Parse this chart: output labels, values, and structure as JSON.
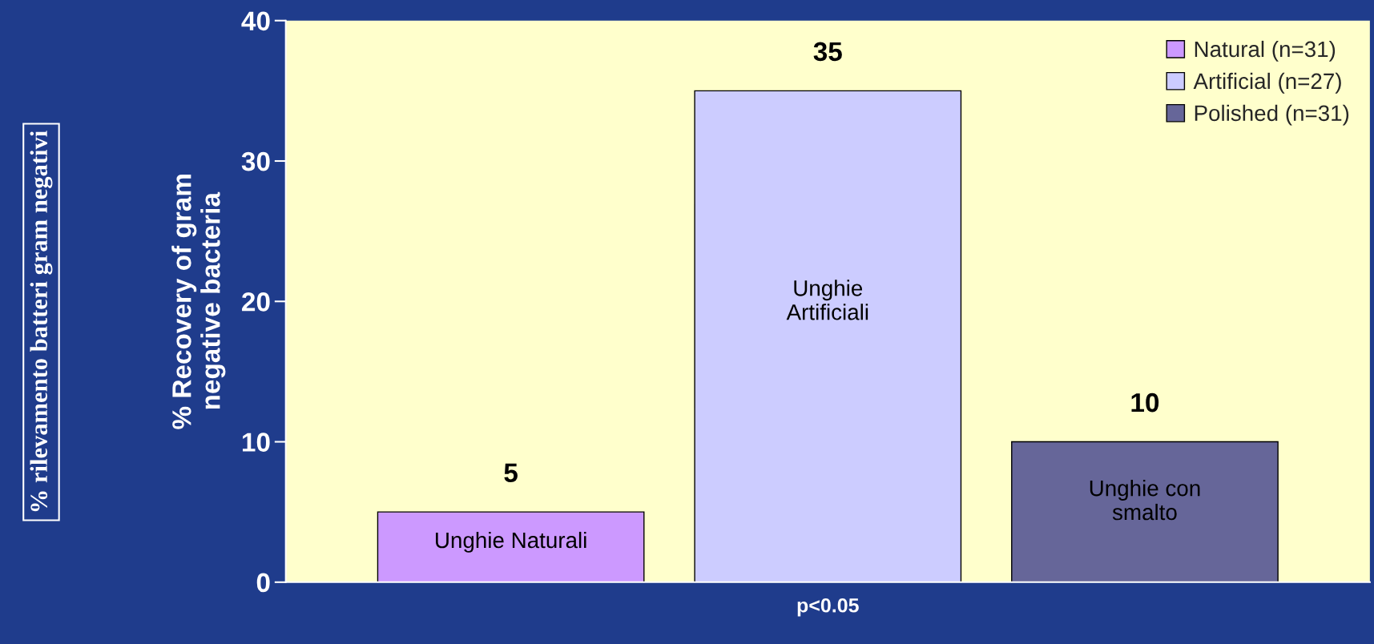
{
  "chart_data": {
    "type": "bar",
    "categories": [
      null
    ],
    "series": [
      {
        "name": "Natural (n=31)",
        "color": "#cc99ff",
        "values": [
          5
        ]
      },
      {
        "name": "Artificial (n=27)",
        "color": "#ccccff",
        "values": [
          35
        ]
      },
      {
        "name": "Polished (n=31)",
        "color": "#666699",
        "values": [
          10
        ]
      }
    ],
    "ylabel": "% Recovery of gram\nnegative bacteria",
    "xlabel": "p<0.05",
    "ylim": [
      0,
      40
    ],
    "yticks": [
      0,
      10,
      20,
      30,
      40
    ],
    "data_labels": true,
    "legend": "top right",
    "grid": false,
    "annotations": [
      "Unghie Naturali",
      "Unghie\nArtificiali",
      "Unghie con\nsmalto",
      "% rilevamento batteri gram negativi"
    ]
  }
}
